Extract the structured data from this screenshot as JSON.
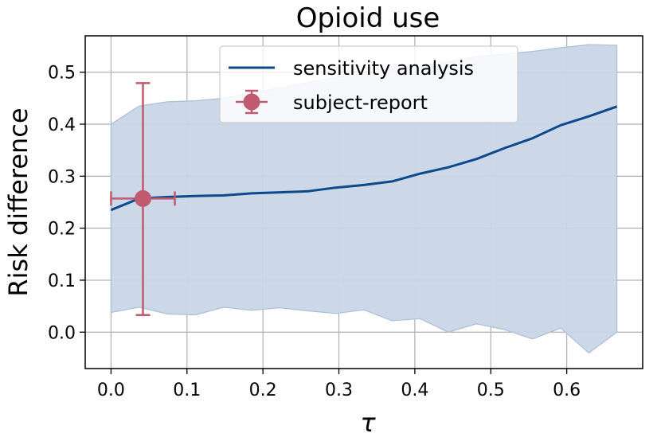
{
  "chart_data": {
    "type": "line",
    "title": "Opioid use",
    "xlabel": "τ",
    "ylabel": "Risk difference",
    "xlim": [
      -0.034,
      0.7
    ],
    "ylim": [
      -0.07,
      0.57
    ],
    "xticks": [
      0.0,
      0.1,
      0.2,
      0.3,
      0.4,
      0.5,
      0.6
    ],
    "xtick_labels": [
      "0.0",
      "0.1",
      "0.2",
      "0.3",
      "0.4",
      "0.5",
      "0.6"
    ],
    "yticks": [
      0.0,
      0.1,
      0.2,
      0.3,
      0.4,
      0.5
    ],
    "ytick_labels": [
      "0.0",
      "0.1",
      "0.2",
      "0.3",
      "0.4",
      "0.5"
    ],
    "grid": true,
    "legend_position": "top-center",
    "series": [
      {
        "name": "sensitivity analysis",
        "color": "#0d4a8c",
        "x": [
          0.0,
          0.037,
          0.074,
          0.111,
          0.148,
          0.185,
          0.222,
          0.259,
          0.296,
          0.333,
          0.37,
          0.407,
          0.444,
          0.481,
          0.518,
          0.555,
          0.592,
          0.629,
          0.666
        ],
        "y": [
          0.235,
          0.257,
          0.26,
          0.262,
          0.263,
          0.267,
          0.269,
          0.271,
          0.278,
          0.283,
          0.29,
          0.305,
          0.317,
          0.333,
          0.354,
          0.373,
          0.398,
          0.415,
          0.434
        ],
        "band_upper": [
          0.4,
          0.435,
          0.443,
          0.445,
          0.45,
          0.46,
          0.47,
          0.48,
          0.49,
          0.497,
          0.505,
          0.51,
          0.52,
          0.53,
          0.535,
          0.54,
          0.547,
          0.553,
          0.552
        ],
        "band_lower": [
          0.038,
          0.048,
          0.035,
          0.033,
          0.048,
          0.042,
          0.047,
          0.041,
          0.036,
          0.043,
          0.022,
          0.026,
          0.0,
          0.016,
          0.005,
          -0.013,
          0.008,
          -0.04,
          0.0
        ],
        "band_color": "#c9d6e6"
      },
      {
        "name": "subject-report",
        "type": "errorbar",
        "color": "#c05a6e",
        "x": 0.042,
        "y": 0.257,
        "xerr": [
          0.042,
          0.042
        ],
        "yerr_low": 0.033,
        "yerr_high": 0.479
      }
    ]
  }
}
